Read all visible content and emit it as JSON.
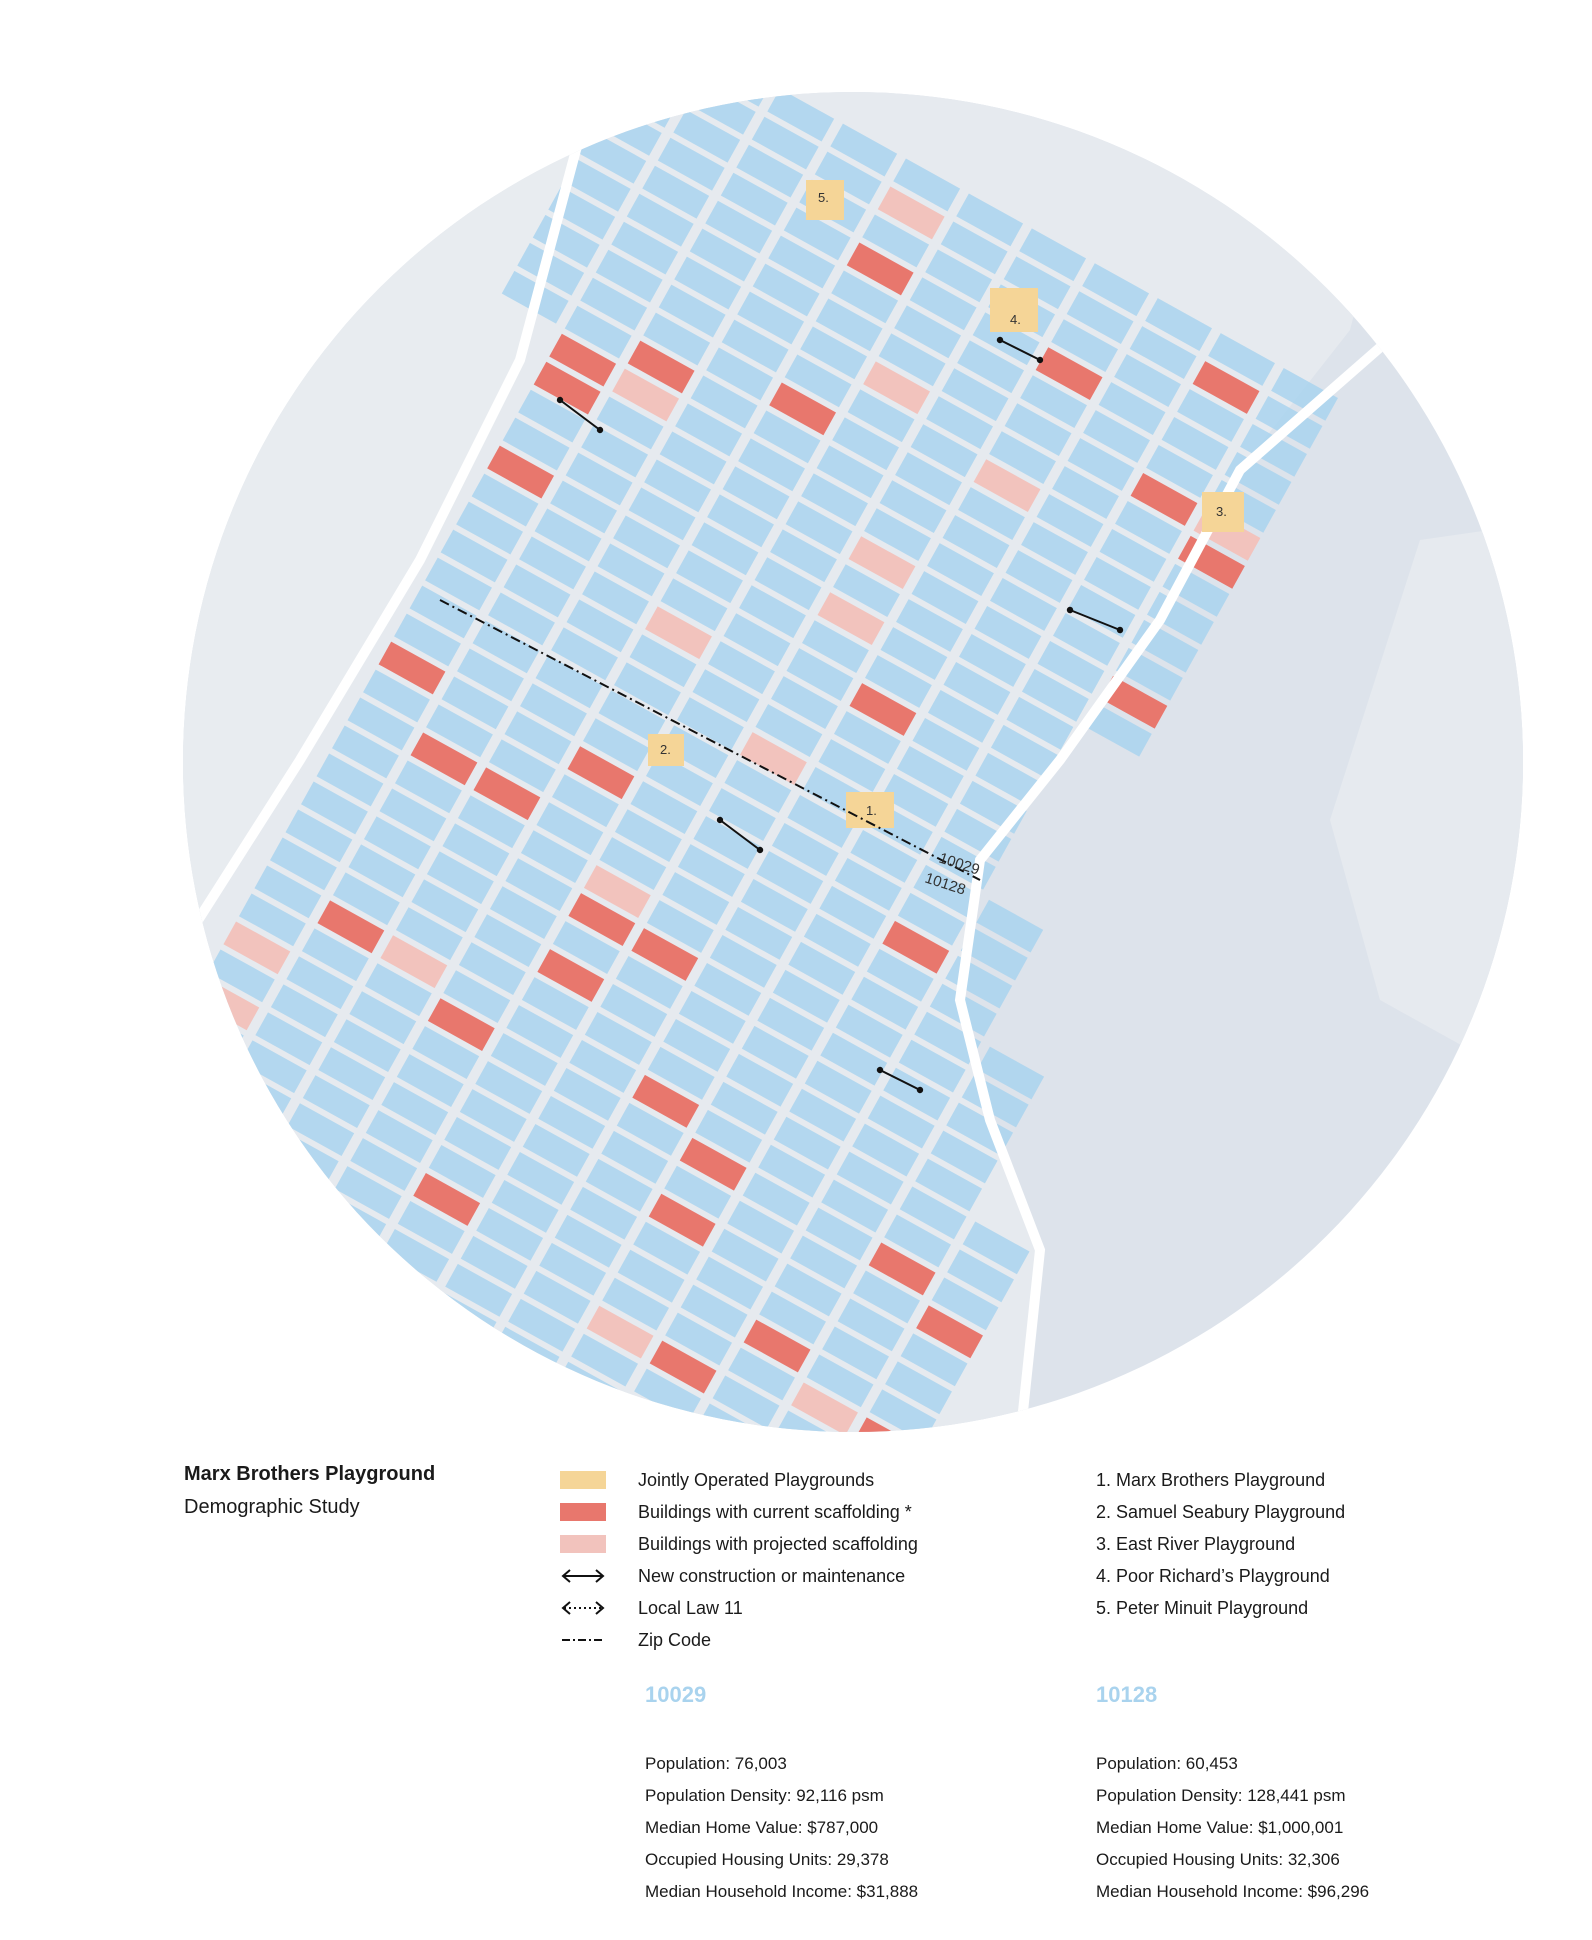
{
  "colors": {
    "water": "#dde3eb",
    "land": "#e6eaef",
    "street": "#ffffff",
    "building": "#a9d3ee",
    "jointly_operated": "#f5d597",
    "current_scaffolding": "#e8776d",
    "projected_scaffolding": "#f2c3bd",
    "line": "#111111"
  },
  "map": {
    "zip_north": "10029",
    "zip_south": "10128",
    "playground_markers": [
      "1.",
      "2.",
      "3.",
      "4.",
      "5."
    ]
  },
  "title": {
    "main": "Marx Brothers Playground",
    "sub": "Demographic Study"
  },
  "legend": [
    {
      "label": "Jointly Operated Playgrounds",
      "symbol": "swatch-yellow"
    },
    {
      "label": "Buildings with current scaffolding *",
      "symbol": "swatch-red"
    },
    {
      "label": "Buildings with projected scaffolding",
      "symbol": "swatch-pink"
    },
    {
      "label": "New construction or maintenance",
      "symbol": "double-arrow-solid"
    },
    {
      "label": "Local Law 11",
      "symbol": "double-arrow-dotted"
    },
    {
      "label": "Zip Code",
      "symbol": "dash-dot-line"
    }
  ],
  "playgrounds": [
    "1. Marx Brothers Playground",
    "2. Samuel Seabury Playground",
    "3. East River Playground",
    "4. Poor Richard’s Playground",
    "5. Peter Minuit Playground"
  ],
  "stats": [
    {
      "zip": "10029",
      "population": "Population: 76,003",
      "density": "Population Density: 92,116 psm",
      "home_value": "Median Home Value: $787,000",
      "housing_units": "Occupied Housing Units: 29,378",
      "income": "Median Household Income: $31,888"
    },
    {
      "zip": "10128",
      "population": "Population: 60,453",
      "density": "Population Density: 128,441 psm",
      "home_value": "Median Home Value: $1,000,001",
      "housing_units": "Occupied Housing Units: 32,306",
      "income": "Median Household Income: $96,296"
    }
  ]
}
